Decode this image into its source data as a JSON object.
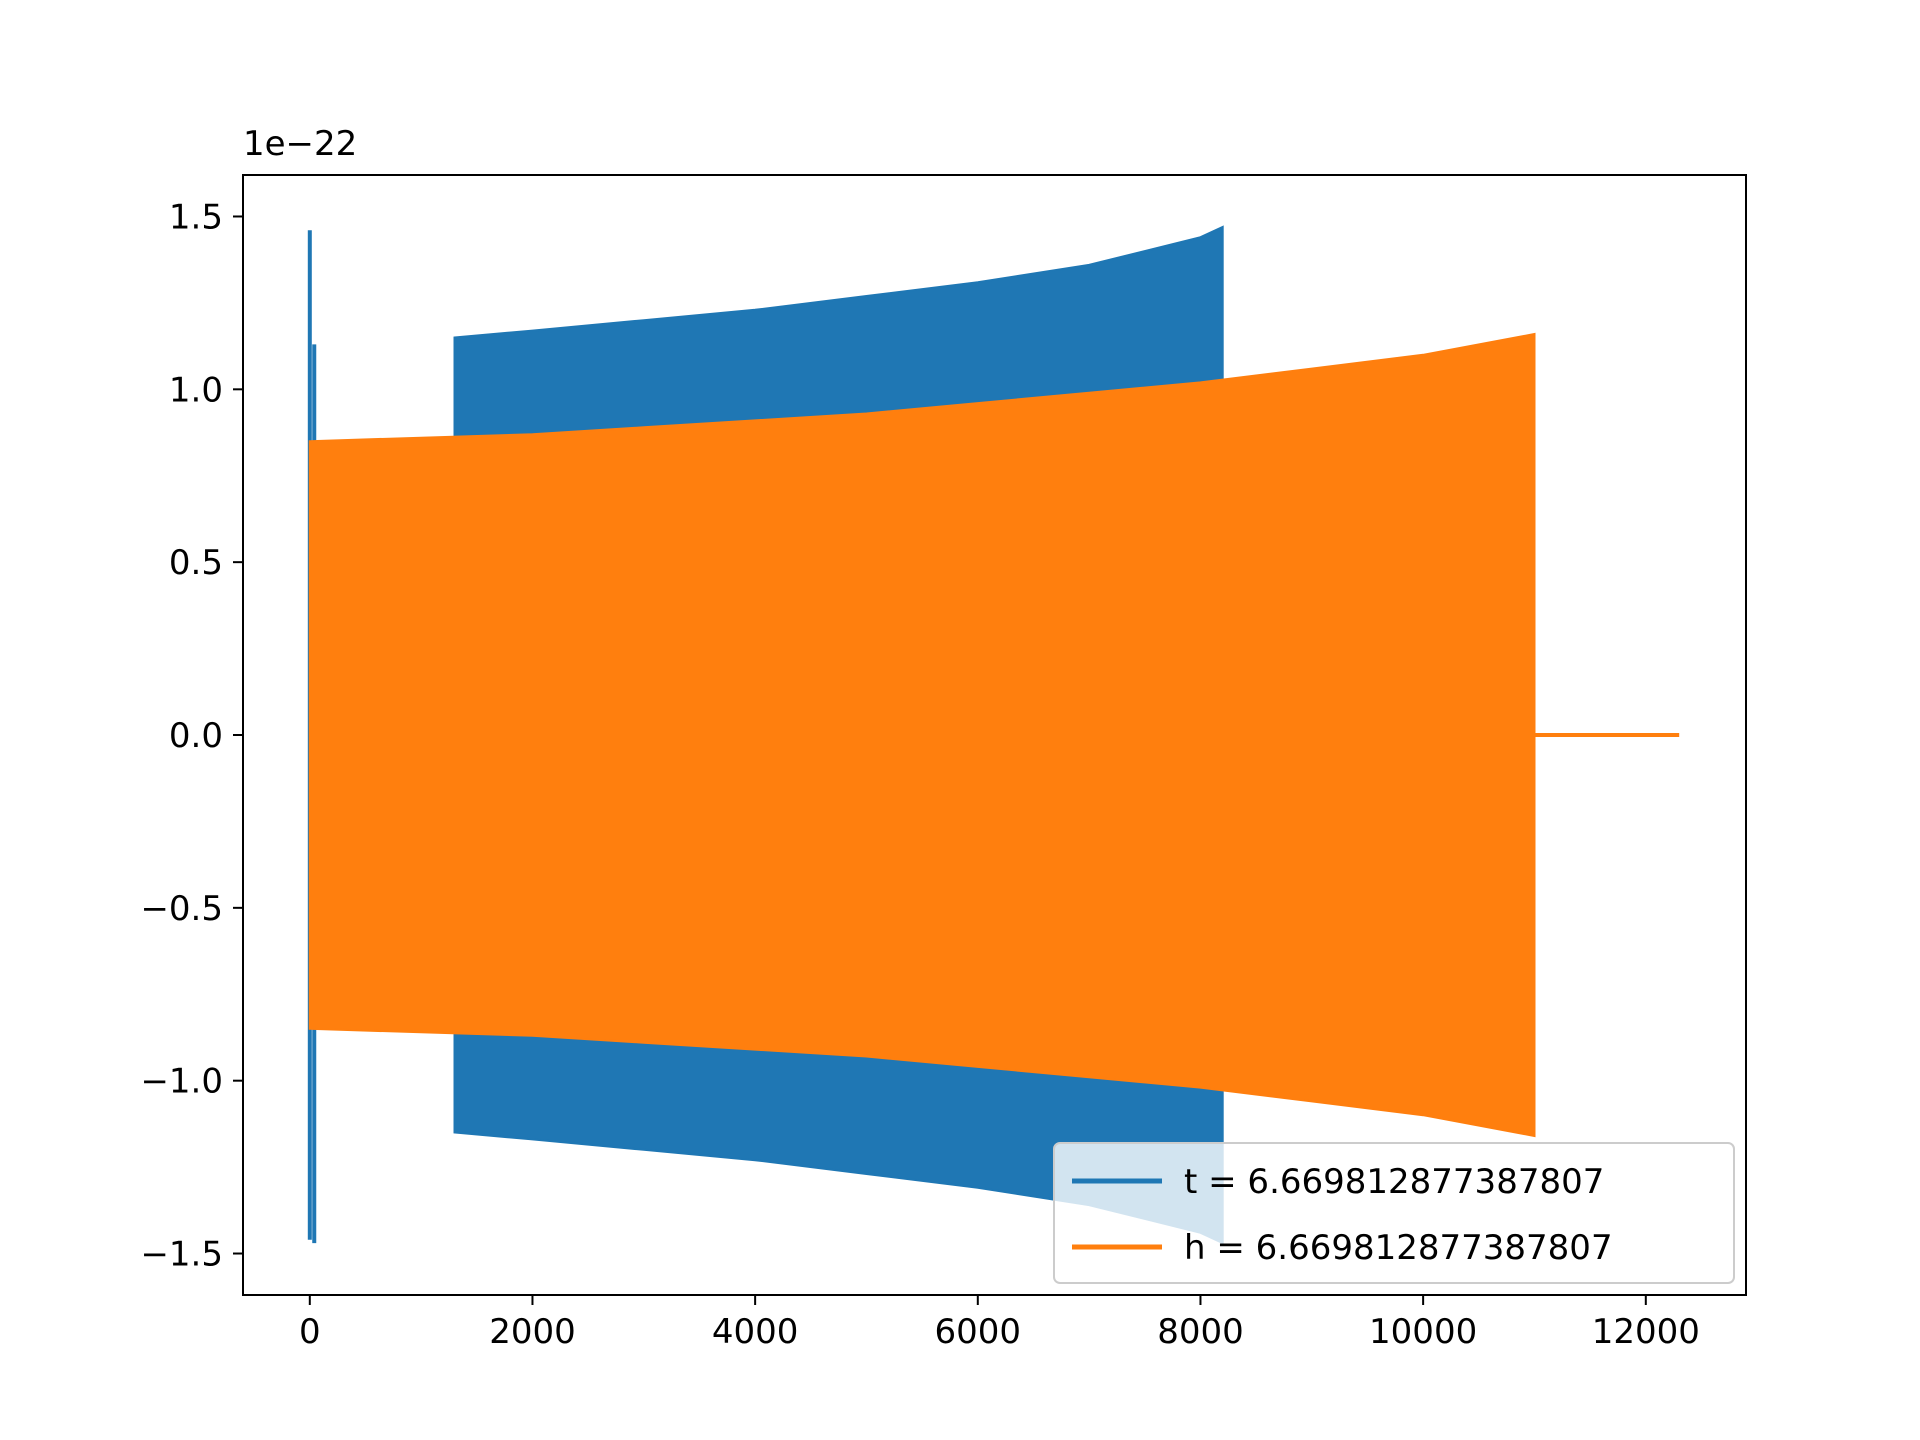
{
  "chart_data": {
    "type": "line",
    "title": "",
    "xlabel": "",
    "ylabel": "",
    "y_offset_text": "1e−22",
    "xlim": [
      -600,
      12900
    ],
    "ylim": [
      -1.62,
      1.62
    ],
    "x_ticks": [
      0,
      2000,
      4000,
      6000,
      8000,
      10000,
      12000
    ],
    "x_tick_labels": [
      "0",
      "2000",
      "4000",
      "6000",
      "8000",
      "10000",
      "12000"
    ],
    "y_ticks": [
      1.5,
      1.0,
      0.5,
      0.0,
      -0.5,
      -1.0,
      -1.5
    ],
    "y_tick_labels": [
      "1.5",
      "1.0",
      "0.5",
      "0.0",
      "−0.5",
      "−1.0",
      "−1.5"
    ],
    "grid": false,
    "legend_position": "lower right",
    "series": [
      {
        "name": "t = 6.669812877387807",
        "color": "#1f77b4",
        "envelope": {
          "x": [
            1300,
            2000,
            3000,
            4000,
            5000,
            6000,
            7000,
            8000,
            8200
          ],
          "upper": [
            1.15,
            1.17,
            1.2,
            1.23,
            1.27,
            1.31,
            1.36,
            1.44,
            1.47
          ],
          "lower": [
            -1.15,
            -1.17,
            -1.2,
            -1.23,
            -1.27,
            -1.31,
            -1.36,
            -1.44,
            -1.47
          ]
        },
        "spikes": [
          {
            "x": 0,
            "max": 1.46,
            "min": -1.46
          },
          {
            "x": 40,
            "max": 1.13,
            "min": -1.47
          }
        ]
      },
      {
        "name": "h = 6.669812877387807",
        "color": "#ff7f0e",
        "envelope": {
          "x": [
            0,
            1000,
            2000,
            3000,
            4000,
            5000,
            6000,
            7000,
            8000,
            9000,
            10000,
            11000
          ],
          "upper": [
            0.85,
            0.86,
            0.87,
            0.89,
            0.91,
            0.93,
            0.96,
            0.99,
            1.02,
            1.06,
            1.1,
            1.16
          ],
          "lower": [
            -0.85,
            -0.86,
            -0.87,
            -0.89,
            -0.91,
            -0.93,
            -0.96,
            -0.99,
            -1.02,
            -1.06,
            -1.1,
            -1.16
          ]
        },
        "tail_line": {
          "x": [
            11000,
            12300
          ],
          "y": [
            0.0,
            0.0
          ]
        }
      }
    ]
  }
}
